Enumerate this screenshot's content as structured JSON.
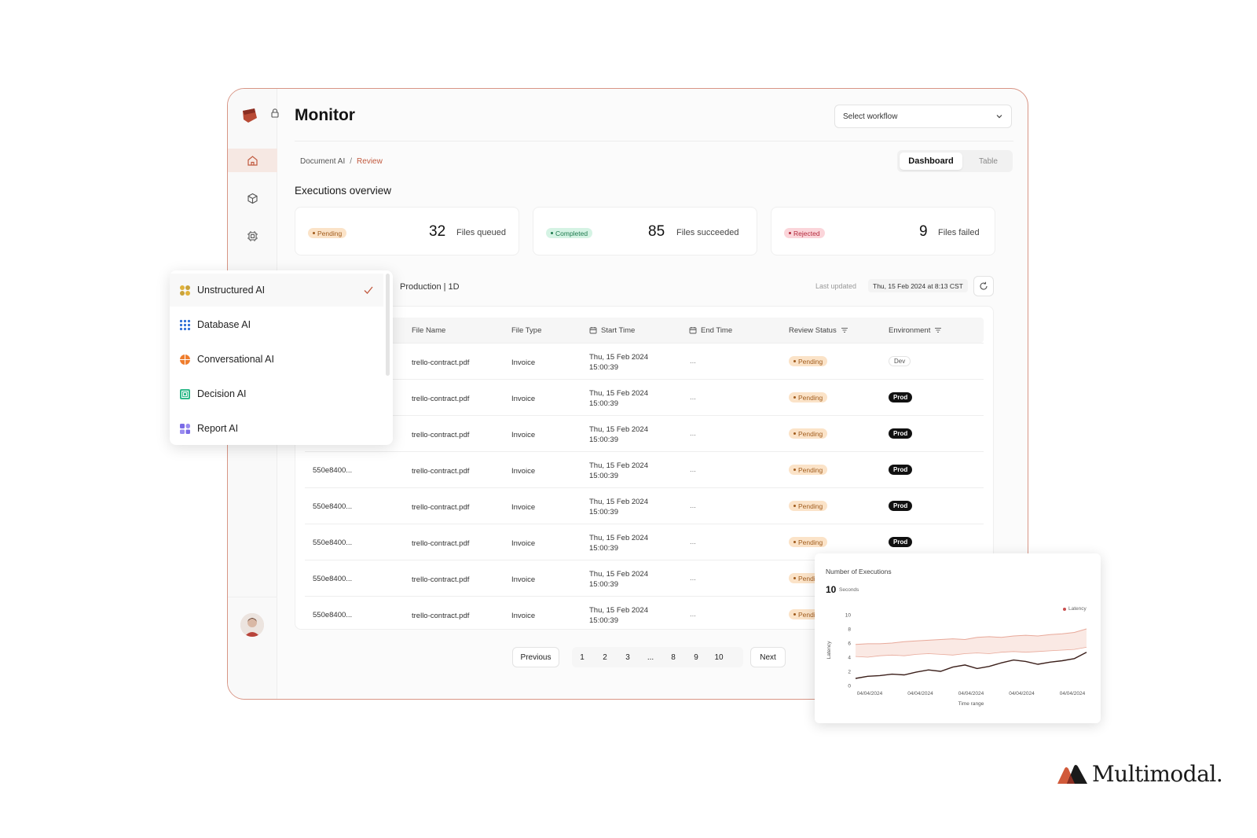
{
  "app": {
    "title": "Monitor",
    "accent": "#c15a3f"
  },
  "workflow_select": {
    "value": "Select workflow"
  },
  "breadcrumb": {
    "parent": "Document AI",
    "separator": "/",
    "current": "Review"
  },
  "view_toggle": {
    "active": "Dashboard",
    "inactive": "Table"
  },
  "overview": {
    "title": "Executions overview",
    "cards": [
      {
        "badge": "Pending",
        "value": "32",
        "label": "Files queued"
      },
      {
        "badge": "Completed",
        "value": "85",
        "label": "Files succeeded"
      },
      {
        "badge": "Rejected",
        "value": "9",
        "label": "Files failed"
      }
    ]
  },
  "toolbar": {
    "label": "Production | 1D",
    "last_updated_label": "Last updated",
    "last_updated_value": "Thu, 15 Feb 2024 at 8:13 CST"
  },
  "table": {
    "headers": {
      "file_name": "File Name",
      "file_type": "File Type",
      "start_time": "Start Time",
      "end_time": "End Time",
      "review_status": "Review Status",
      "environment": "Environment"
    },
    "rows": [
      {
        "id": "",
        "file_name": "trello-contract.pdf",
        "file_type": "Invoice",
        "start_date": "Thu, 15 Feb 2024",
        "start_time": "15:00:39",
        "end_time": "...",
        "review": "Pending",
        "env": "Dev"
      },
      {
        "id": "",
        "file_name": "trello-contract.pdf",
        "file_type": "Invoice",
        "start_date": "Thu, 15 Feb 2024",
        "start_time": "15:00:39",
        "end_time": "...",
        "review": "Pending",
        "env": "Prod"
      },
      {
        "id": "",
        "file_name": "trello-contract.pdf",
        "file_type": "Invoice",
        "start_date": "Thu, 15 Feb 2024",
        "start_time": "15:00:39",
        "end_time": "...",
        "review": "Pending",
        "env": "Prod"
      },
      {
        "id": "550e8400...",
        "file_name": "trello-contract.pdf",
        "file_type": "Invoice",
        "start_date": "Thu, 15 Feb 2024",
        "start_time": "15:00:39",
        "end_time": "...",
        "review": "Pending",
        "env": "Prod"
      },
      {
        "id": "550e8400...",
        "file_name": "trello-contract.pdf",
        "file_type": "Invoice",
        "start_date": "Thu, 15 Feb 2024",
        "start_time": "15:00:39",
        "end_time": "...",
        "review": "Pending",
        "env": "Prod"
      },
      {
        "id": "550e8400...",
        "file_name": "trello-contract.pdf",
        "file_type": "Invoice",
        "start_date": "Thu, 15 Feb 2024",
        "start_time": "15:00:39",
        "end_time": "...",
        "review": "Pending",
        "env": "Prod"
      },
      {
        "id": "550e8400...",
        "file_name": "trello-contract.pdf",
        "file_type": "Invoice",
        "start_date": "Thu, 15 Feb 2024",
        "start_time": "15:00:39",
        "end_time": "...",
        "review": "Pending",
        "env": ""
      },
      {
        "id": "550e8400...",
        "file_name": "trello-contract.pdf",
        "file_type": "Invoice",
        "start_date": "Thu, 15 Feb 2024",
        "start_time": "15:00:39",
        "end_time": "...",
        "review": "Pending",
        "env": ""
      }
    ]
  },
  "pagination": {
    "previous": "Previous",
    "next": "Next",
    "pages": [
      "1",
      "2",
      "3",
      "...",
      "8",
      "9",
      "10"
    ]
  },
  "dropdown": {
    "items": [
      {
        "label": "Unstructured AI",
        "icon": "unstructured-ai-icon",
        "selected": true
      },
      {
        "label": "Database AI",
        "icon": "database-ai-icon",
        "selected": false
      },
      {
        "label": "Conversational AI",
        "icon": "conversational-ai-icon",
        "selected": false
      },
      {
        "label": "Decision AI",
        "icon": "decision-ai-icon",
        "selected": false
      },
      {
        "label": "Report AI",
        "icon": "report-ai-icon",
        "selected": false
      }
    ]
  },
  "chart_data": {
    "type": "line",
    "title": "Number of Executions",
    "headline_value": "10",
    "headline_unit": "Seconds",
    "xlabel": "Time range",
    "ylabel": "Latency",
    "ylim": [
      0,
      10
    ],
    "yticks": [
      0,
      2,
      4,
      6,
      8,
      10
    ],
    "xticks": [
      "04/04/2024",
      "04/04/2024",
      "04/04/2024",
      "04/04/2024",
      "04/04/2024"
    ],
    "legend": [
      "Latency"
    ],
    "legend_position": "top-right",
    "series": [
      {
        "name": "Latency",
        "values": [
          5.8,
          5.9,
          5.9,
          6.0,
          6.2,
          6.3,
          6.4,
          6.5,
          6.6,
          6.5,
          6.8,
          6.9,
          6.8,
          7.0,
          7.1,
          7.0,
          7.2,
          7.3,
          7.5,
          8.0
        ]
      },
      {
        "values": [
          4.1,
          4.0,
          4.2,
          4.3,
          4.2,
          4.4,
          4.5,
          4.4,
          4.3,
          4.5,
          4.6,
          4.5,
          4.7,
          4.8,
          4.7,
          4.8,
          4.9,
          5.0,
          5.1,
          5.4
        ]
      },
      {
        "values": [
          1.0,
          1.3,
          1.4,
          1.6,
          1.5,
          1.9,
          2.2,
          2.0,
          2.6,
          2.9,
          2.4,
          2.7,
          3.2,
          3.6,
          3.4,
          3.0,
          3.3,
          3.5,
          3.8,
          4.7
        ]
      }
    ],
    "colors": {
      "primary": "#c94f4f",
      "secondary": "#e8a99a",
      "dark": "#3b1f1a"
    }
  },
  "brand": {
    "name": "Multimodal."
  }
}
